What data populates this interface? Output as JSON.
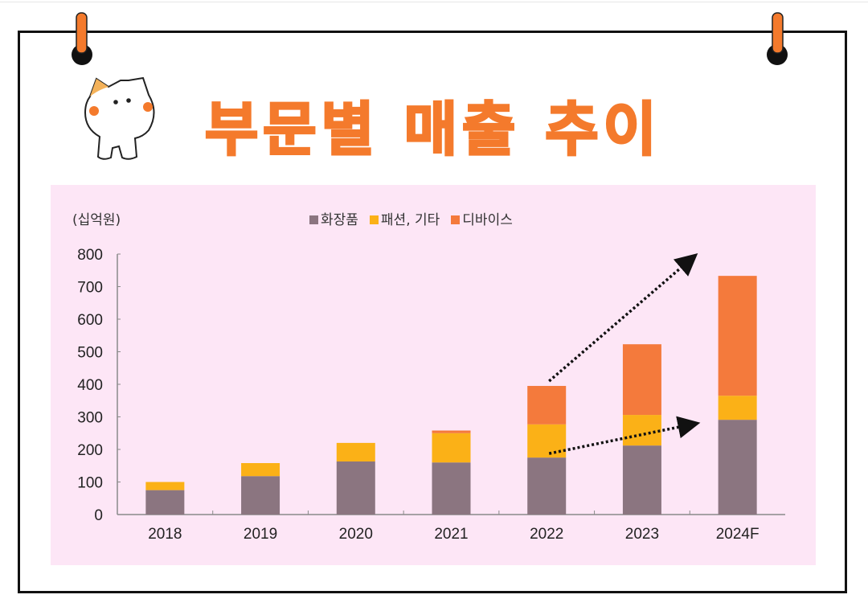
{
  "chart_data": {
    "type": "bar",
    "stacked": true,
    "title": "부문별 매출 추이",
    "ylabel": "(십억원)",
    "ylim": [
      0,
      800
    ],
    "yticks": [
      0,
      100,
      200,
      300,
      400,
      500,
      600,
      700,
      800
    ],
    "categories": [
      "2018",
      "2019",
      "2020",
      "2021",
      "2022",
      "2023",
      "2024F"
    ],
    "series": [
      {
        "name": "화장품",
        "color": "#8b7580",
        "values": [
          75,
          118,
          163,
          160,
          175,
          212,
          291
        ]
      },
      {
        "name": "패션, 기타",
        "color": "#fbb117",
        "values": [
          25,
          40,
          57,
          90,
          102,
          94,
          74
        ]
      },
      {
        "name": "디바이스",
        "color": "#f47a3c",
        "values": [
          0,
          0,
          0,
          8,
          118,
          217,
          368
        ]
      }
    ],
    "legend_position": "top",
    "grid": false,
    "annotations": [
      "dotted arrow from 2022 device top toward 2024F",
      "dotted arrow from 2022 cosmetics toward 2024F"
    ]
  },
  "colors": {
    "accent": "#f47a2c",
    "chart_bg": "#fde6f6"
  }
}
